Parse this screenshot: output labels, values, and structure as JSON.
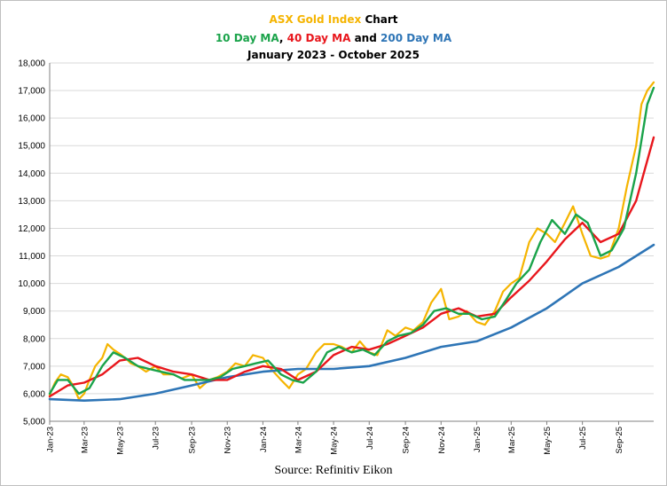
{
  "colors": {
    "title_gold": "#f5b400",
    "ma10": "#1aa34a",
    "ma40": "#e8161c",
    "ma200": "#2e75b6",
    "index": "#f5b400",
    "axis": "#808080",
    "grid": "#d9d9d9"
  },
  "header": {
    "line1_title": "ASX Gold Index",
    "line1_suffix": "Chart",
    "ma10_label": "10 Day MA",
    "comma": ", ",
    "ma40_label": "40 Day MA",
    "and_word": " and ",
    "ma200_label": "200 Day MA",
    "date_range": "January 2023 - October 2025"
  },
  "source": "Source: Refinitiv Eikon",
  "chart_data": {
    "type": "line",
    "title": "ASX Gold Index Chart",
    "subtitle": "10 Day MA, 40 Day MA and 200 Day MA",
    "date_range": "January 2023 - October 2025",
    "xlabel": "",
    "ylabel": "",
    "ylim": [
      5000,
      18000
    ],
    "yticks": [
      5000,
      6000,
      7000,
      8000,
      9000,
      10000,
      11000,
      12000,
      13000,
      14000,
      15000,
      16000,
      17000,
      18000
    ],
    "ytick_labels": [
      "5,000",
      "6,000",
      "7,000",
      "8,000",
      "9,000",
      "10,000",
      "11,000",
      "12,000",
      "13,000",
      "14,000",
      "15,000",
      "16,000",
      "17,000",
      "18,000"
    ],
    "xlim": [
      "2023-01-01",
      "2025-10-31"
    ],
    "xticks": [
      "2023-01-01",
      "2023-03-01",
      "2023-05-01",
      "2023-07-01",
      "2023-09-01",
      "2023-11-01",
      "2024-01-01",
      "2024-03-01",
      "2024-05-01",
      "2024-07-01",
      "2024-09-01",
      "2024-11-01",
      "2025-01-01",
      "2025-03-01",
      "2025-05-01",
      "2025-07-01",
      "2025-09-01"
    ],
    "xtick_labels": [
      "Jan-23",
      "Mar-23",
      "May-23",
      "Jul-23",
      "Sep-23",
      "Nov-23",
      "Jan-24",
      "Mar-24",
      "May-24",
      "Jul-24",
      "Sep-24",
      "Nov-24",
      "Jan-25",
      "Mar-25",
      "May-25",
      "Jul-25",
      "Sep-25"
    ],
    "grid": {
      "horizontal": true,
      "vertical": false
    },
    "legend": "none",
    "series": [
      {
        "id": "index",
        "color": "#f5b400",
        "x": [
          "2023-01-01",
          "2023-01-10",
          "2023-01-20",
          "2023-02-01",
          "2023-02-10",
          "2023-02-20",
          "2023-03-01",
          "2023-03-10",
          "2023-03-20",
          "2023-04-01",
          "2023-04-10",
          "2023-04-20",
          "2023-05-01",
          "2023-05-10",
          "2023-05-20",
          "2023-06-01",
          "2023-06-15",
          "2023-07-01",
          "2023-07-15",
          "2023-08-01",
          "2023-08-15",
          "2023-09-01",
          "2023-09-15",
          "2023-10-01",
          "2023-10-15",
          "2023-11-01",
          "2023-11-15",
          "2023-12-01",
          "2023-12-15",
          "2024-01-01",
          "2024-01-15",
          "2024-02-01",
          "2024-02-15",
          "2024-03-01",
          "2024-03-15",
          "2024-04-01",
          "2024-04-15",
          "2024-05-01",
          "2024-05-15",
          "2024-06-01",
          "2024-06-15",
          "2024-07-01",
          "2024-07-15",
          "2024-08-01",
          "2024-08-15",
          "2024-09-01",
          "2024-09-15",
          "2024-10-01",
          "2024-10-15",
          "2024-11-01",
          "2024-11-15",
          "2024-12-01",
          "2024-12-15",
          "2025-01-01",
          "2025-01-15",
          "2025-02-01",
          "2025-02-15",
          "2025-03-01",
          "2025-03-15",
          "2025-04-01",
          "2025-04-15",
          "2025-05-01",
          "2025-05-15",
          "2025-06-01",
          "2025-06-15",
          "2025-07-01",
          "2025-07-15",
          "2025-08-01",
          "2025-08-15",
          "2025-09-01",
          "2025-09-15",
          "2025-10-01",
          "2025-10-10",
          "2025-10-20",
          "2025-10-31"
        ],
        "y": [
          5950,
          6400,
          6700,
          6600,
          6300,
          5800,
          6000,
          6500,
          7000,
          7300,
          7800,
          7600,
          7450,
          7300,
          7100,
          7000,
          6800,
          7000,
          6700,
          6700,
          6550,
          6700,
          6200,
          6500,
          6600,
          6800,
          7100,
          7000,
          7400,
          7300,
          6900,
          6500,
          6200,
          6700,
          6900,
          7500,
          7800,
          7800,
          7700,
          7500,
          7900,
          7500,
          7400,
          8300,
          8100,
          8400,
          8300,
          8600,
          9300,
          9800,
          8700,
          8800,
          9000,
          8600,
          8500,
          9000,
          9700,
          10000,
          10200,
          11500,
          12000,
          11800,
          11500,
          12200,
          12800,
          11800,
          11000,
          10900,
          11000,
          12000,
          13500,
          15000,
          16500,
          17000,
          17300
        ]
      },
      {
        "id": "ma10",
        "color": "#1aa34a",
        "x": [
          "2023-01-01",
          "2023-01-15",
          "2023-02-01",
          "2023-02-20",
          "2023-03-10",
          "2023-04-01",
          "2023-04-20",
          "2023-05-10",
          "2023-06-01",
          "2023-06-20",
          "2023-07-10",
          "2023-08-01",
          "2023-08-20",
          "2023-09-10",
          "2023-10-01",
          "2023-10-20",
          "2023-11-10",
          "2023-12-01",
          "2023-12-20",
          "2024-01-10",
          "2024-02-01",
          "2024-02-20",
          "2024-03-10",
          "2024-04-01",
          "2024-04-20",
          "2024-05-10",
          "2024-06-01",
          "2024-06-20",
          "2024-07-10",
          "2024-08-01",
          "2024-08-20",
          "2024-09-10",
          "2024-10-01",
          "2024-10-20",
          "2024-11-10",
          "2024-12-01",
          "2024-12-20",
          "2025-01-10",
          "2025-02-01",
          "2025-02-20",
          "2025-03-10",
          "2025-04-01",
          "2025-04-20",
          "2025-05-10",
          "2025-06-01",
          "2025-06-20",
          "2025-07-10",
          "2025-08-01",
          "2025-08-20",
          "2025-09-10",
          "2025-10-01",
          "2025-10-20",
          "2025-10-31"
        ],
        "y": [
          6000,
          6500,
          6500,
          6000,
          6200,
          7000,
          7500,
          7300,
          7000,
          6900,
          6800,
          6700,
          6500,
          6500,
          6500,
          6600,
          6900,
          7000,
          7100,
          7200,
          6700,
          6500,
          6400,
          6800,
          7500,
          7700,
          7500,
          7600,
          7400,
          7900,
          8100,
          8200,
          8500,
          9000,
          9100,
          8900,
          8900,
          8700,
          8800,
          9400,
          10000,
          10500,
          11500,
          12300,
          11800,
          12500,
          12200,
          11000,
          11200,
          12000,
          14000,
          16500,
          17100
        ]
      },
      {
        "id": "ma40",
        "color": "#e8161c",
        "x": [
          "2023-01-01",
          "2023-02-01",
          "2023-03-01",
          "2023-04-01",
          "2023-05-01",
          "2023-06-01",
          "2023-07-01",
          "2023-08-01",
          "2023-09-01",
          "2023-10-01",
          "2023-11-01",
          "2023-12-01",
          "2024-01-01",
          "2024-02-01",
          "2024-03-01",
          "2024-04-01",
          "2024-05-01",
          "2024-06-01",
          "2024-07-01",
          "2024-08-01",
          "2024-09-01",
          "2024-10-01",
          "2024-11-01",
          "2024-12-01",
          "2025-01-01",
          "2025-02-01",
          "2025-03-01",
          "2025-04-01",
          "2025-05-01",
          "2025-06-01",
          "2025-07-01",
          "2025-08-01",
          "2025-09-01",
          "2025-10-01",
          "2025-10-31"
        ],
        "y": [
          5900,
          6300,
          6400,
          6700,
          7200,
          7300,
          7000,
          6800,
          6700,
          6500,
          6500,
          6800,
          7000,
          6900,
          6500,
          6800,
          7400,
          7700,
          7600,
          7800,
          8100,
          8400,
          8900,
          9100,
          8800,
          8900,
          9500,
          10100,
          10800,
          11600,
          12200,
          11500,
          11800,
          13000,
          15300
        ]
      },
      {
        "id": "ma200",
        "color": "#2e75b6",
        "x": [
          "2023-01-01",
          "2023-03-01",
          "2023-05-01",
          "2023-07-01",
          "2023-09-01",
          "2023-11-01",
          "2024-01-01",
          "2024-03-01",
          "2024-05-01",
          "2024-07-01",
          "2024-09-01",
          "2024-11-01",
          "2025-01-01",
          "2025-03-01",
          "2025-05-01",
          "2025-07-01",
          "2025-09-01",
          "2025-10-31"
        ],
        "y": [
          5800,
          5750,
          5800,
          6000,
          6300,
          6600,
          6800,
          6900,
          6900,
          7000,
          7300,
          7700,
          7900,
          8400,
          9100,
          10000,
          10600,
          11400
        ]
      }
    ]
  }
}
